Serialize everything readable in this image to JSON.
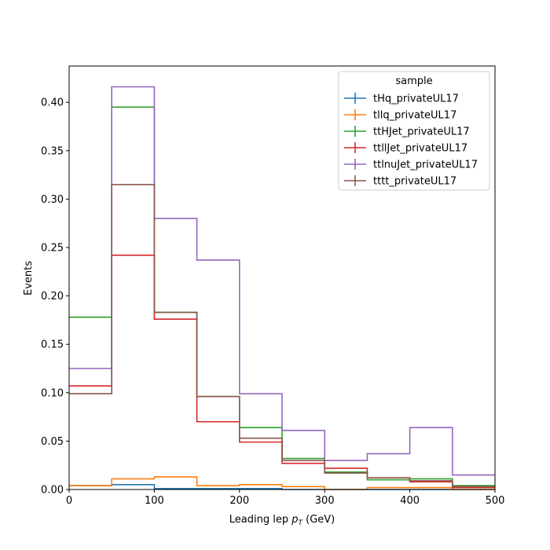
{
  "chart_data": {
    "type": "step-histogram",
    "xlabel": "Leading lep",
    "xlabel_sym": "p",
    "xlabel_sub": "T",
    "xlabel_unit": " (GeV)",
    "ylabel": "Events",
    "xlim": [
      0,
      500
    ],
    "ylim": [
      0,
      0.4375
    ],
    "xticks": [
      0,
      100,
      200,
      300,
      400,
      500
    ],
    "yticks": [
      0.0,
      0.05,
      0.1,
      0.15,
      0.2,
      0.25,
      0.3,
      0.35,
      0.4
    ],
    "ytick_labels": [
      "0.00",
      "0.05",
      "0.10",
      "0.15",
      "0.20",
      "0.25",
      "0.30",
      "0.35",
      "0.40"
    ],
    "grid": false,
    "bin_edges": [
      0,
      50,
      100,
      150,
      200,
      250,
      300,
      350,
      400,
      450,
      500
    ],
    "legend": {
      "title": "sample",
      "placement": "top-right"
    },
    "series": [
      {
        "name": "tHq_privateUL17",
        "color": "#1f77b4",
        "values": [
          0.004,
          0.005,
          0.001,
          0.001,
          0.001,
          0.0,
          0.0,
          0.0,
          0.0,
          0.0
        ]
      },
      {
        "name": "tllq_privateUL17",
        "color": "#ff7f0e",
        "values": [
          0.004,
          0.011,
          0.013,
          0.004,
          0.005,
          0.003,
          0.0,
          0.002,
          0.002,
          0.0
        ]
      },
      {
        "name": "ttHJet_privateUL17",
        "color": "#2ca02c",
        "values": [
          0.178,
          0.395,
          0.183,
          0.096,
          0.064,
          0.032,
          0.018,
          0.01,
          0.011,
          0.004
        ]
      },
      {
        "name": "ttllJet_privateUL17",
        "color": "#d62728",
        "values": [
          0.107,
          0.242,
          0.176,
          0.07,
          0.049,
          0.027,
          0.022,
          0.012,
          0.008,
          0.002
        ]
      },
      {
        "name": "ttlnuJet_privateUL17",
        "color": "#9467bd",
        "values": [
          0.125,
          0.416,
          0.28,
          0.237,
          0.099,
          0.061,
          0.03,
          0.037,
          0.064,
          0.015
        ]
      },
      {
        "name": "tttt_privateUL17",
        "color": "#8c564b",
        "values": [
          0.099,
          0.315,
          0.183,
          0.096,
          0.053,
          0.03,
          0.017,
          0.012,
          0.009,
          0.003
        ]
      }
    ]
  }
}
